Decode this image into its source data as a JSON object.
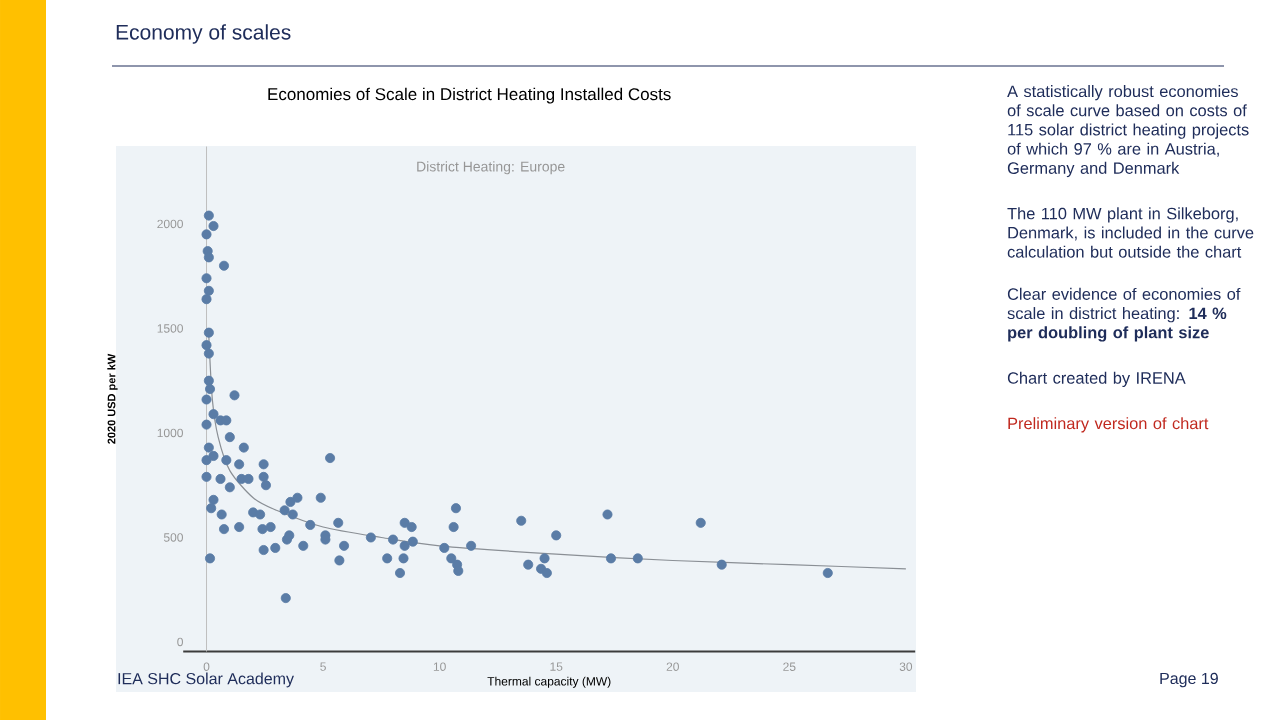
{
  "chart_data": {
    "type": "scatter",
    "title": "Economies of Scale in District Heating Installed Costs",
    "subtitle": "District Heating: Europe",
    "xlabel": "Thermal capacity (MW)",
    "ylabel": "2020 USD per kW",
    "xlim": [
      -1,
      30.4
    ],
    "ylim": [
      -45,
      2370
    ],
    "xticks": [
      0,
      5,
      10,
      15,
      20,
      25,
      30
    ],
    "yticks": [
      0,
      500,
      1000,
      1500,
      2000
    ],
    "series": [
      {
        "marker": "circle",
        "color": "#5a7ca6",
        "x": [
          0.1,
          0.3,
          0,
          0.05,
          0.1,
          0.75,
          0,
          0.1,
          0,
          0.1,
          0,
          0.1,
          0.1,
          0.15,
          0,
          1.2,
          0.3,
          0.6,
          0.85,
          0,
          1.0,
          1.6,
          0.1,
          0.3,
          0,
          0.85,
          1.4,
          2.45,
          5.3,
          0,
          0.6,
          1.0,
          1.5,
          1.8,
          2.45,
          2.55,
          0.3,
          0.2,
          0.65,
          0.75,
          1.4,
          2.0,
          2.3,
          2.4,
          2.75,
          2.45,
          2.95,
          3.35,
          3.6,
          3.9,
          3.7,
          3.45,
          3.55,
          4.15,
          4.45,
          4.9,
          5.1,
          5.1,
          5.65,
          5.7,
          5.9,
          3.4,
          0.15,
          7.05,
          8.0,
          7.75,
          8.3,
          8.5,
          8.8,
          8.85,
          8.5,
          8.45,
          10.7,
          10.6,
          10.2,
          10.5,
          10.75,
          10.8,
          11.35,
          13.5,
          13.8,
          14.35,
          14.5,
          14.6,
          15.0,
          17.2,
          17.35,
          18.5,
          21.2,
          22.1,
          26.65
        ],
        "values": [
          2040,
          1990,
          1950,
          1870,
          1840,
          1800,
          1740,
          1680,
          1640,
          1480,
          1420,
          1380,
          1250,
          1210,
          1160,
          1180,
          1090,
          1060,
          1060,
          1040,
          980,
          930,
          930,
          890,
          870,
          870,
          850,
          850,
          880,
          790,
          780,
          740,
          780,
          780,
          790,
          750,
          680,
          640,
          610,
          540,
          550,
          620,
          610,
          540,
          550,
          440,
          450,
          630,
          670,
          690,
          610,
          490,
          510,
          460,
          560,
          690,
          510,
          490,
          570,
          390,
          460,
          210,
          400,
          500,
          490,
          400,
          330,
          570,
          550,
          480,
          460,
          400,
          640,
          550,
          450,
          400,
          370,
          340,
          460,
          580,
          370,
          350,
          400,
          330,
          510,
          610,
          400,
          400,
          570,
          370,
          330
        ]
      },
      {
        "type": "line",
        "marker": "none",
        "color": "#8a8f95",
        "x": [
          0.1,
          0.25,
          0.5,
          1,
          2,
          3,
          5,
          7.5,
          10,
          15,
          20,
          25,
          30
        ],
        "values": [
          1460,
          1160,
          980,
          820,
          690,
          630,
          550,
          500,
          460,
          420,
          390,
          370,
          350
        ]
      }
    ],
    "annotations": [
      "Economy of scales",
      "A statistically robust economies of scale curve based on costs of 115 solar district heating projects of which 97 % are in Austria, Germany and Denmark",
      "The 110 MW plant in Silkeborg, Denmark, is included in the curve calculation but outside the chart",
      "Clear evidence of economies of scale in district heating: **14 % per doubling of plant size**",
      "Chart created by IRENA",
      "Preliminary version of chart",
      "IEA SHC Solar Academy",
      "Page 19"
    ]
  }
}
